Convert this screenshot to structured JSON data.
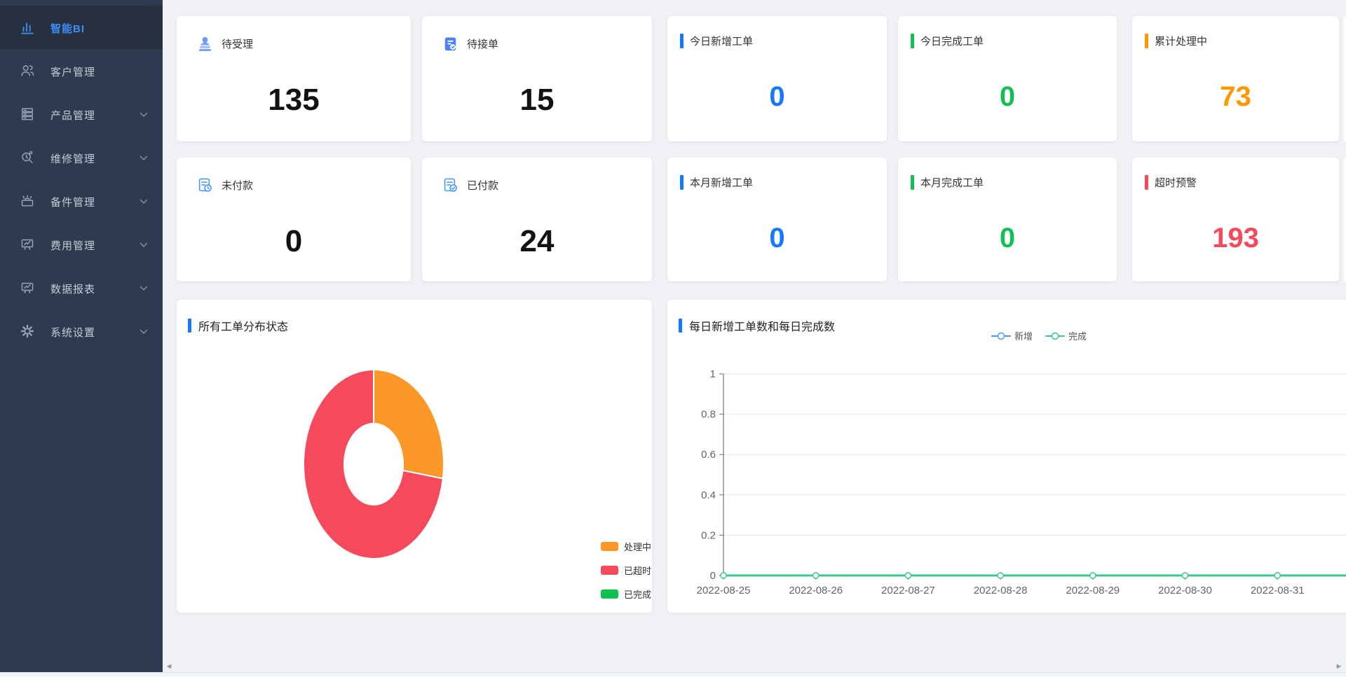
{
  "sidebar": {
    "bg": "#2E3A4E",
    "active_bg": "#26303F",
    "active_color": "#3D8EF7",
    "items": [
      {
        "label": "智能BI",
        "icon": "bar-chart-icon",
        "active": true,
        "chevron": false
      },
      {
        "label": "客户管理",
        "icon": "users-icon",
        "active": false,
        "chevron": false
      },
      {
        "label": "产品管理",
        "icon": "server-stack-icon",
        "active": false,
        "chevron": true
      },
      {
        "label": "维修管理",
        "icon": "magnifier-tool-icon",
        "active": false,
        "chevron": true
      },
      {
        "label": "备件管理",
        "icon": "toolbox-icon",
        "active": false,
        "chevron": true
      },
      {
        "label": "费用管理",
        "icon": "presentation-chart-icon",
        "active": false,
        "chevron": true
      },
      {
        "label": "数据报表",
        "icon": "presentation-chart-icon",
        "active": false,
        "chevron": true
      },
      {
        "label": "系统设置",
        "icon": "gear-icon",
        "active": false,
        "chevron": true
      }
    ]
  },
  "cards": {
    "icon_cards": [
      {
        "row": 1,
        "col": 1,
        "label": "待受理",
        "value": "135",
        "icon": "stamp-icon"
      },
      {
        "row": 1,
        "col": 2,
        "label": "待接单",
        "value": "15",
        "icon": "clipboard-check-icon"
      },
      {
        "row": 2,
        "col": 1,
        "label": "未付款",
        "value": "0",
        "icon": "invoice-clock-icon"
      },
      {
        "row": 2,
        "col": 2,
        "label": "已付款",
        "value": "24",
        "icon": "invoice-check-icon"
      }
    ],
    "bar_cards": [
      {
        "row": 1,
        "col": 1,
        "label": "今日新增工单",
        "value": "0",
        "color": "#1677FF"
      },
      {
        "row": 1,
        "col": 2,
        "label": "今日完成工单",
        "value": "0",
        "color": "#13BF53"
      },
      {
        "row": 1,
        "col": 3,
        "label": "累计处理中",
        "value": "73",
        "color": "#FF9800"
      },
      {
        "row": 2,
        "col": 1,
        "label": "本月新增工单",
        "value": "0",
        "color": "#1677FF"
      },
      {
        "row": 2,
        "col": 2,
        "label": "本月完成工单",
        "value": "0",
        "color": "#13BF53"
      },
      {
        "row": 2,
        "col": 3,
        "label": "超时预警",
        "value": "193",
        "color": "#F5495C"
      }
    ]
  },
  "chart_data": [
    {
      "type": "pie",
      "donut": true,
      "title": "所有工单分布状态",
      "labels": [
        "处理中",
        "已超时",
        "已完成"
      ],
      "values": [
        73,
        193,
        0
      ],
      "colors": [
        "#FB9827",
        "#F5495C",
        "#10C050"
      ],
      "legend_position": "bottom-right"
    },
    {
      "type": "line",
      "title": "每日新增工单数和每日完成数",
      "x": [
        "2022-08-25",
        "2022-08-26",
        "2022-08-27",
        "2022-08-28",
        "2022-08-29",
        "2022-08-30",
        "2022-08-31"
      ],
      "series": [
        {
          "name": "新增",
          "color": "#4D9BF7",
          "values": [
            0,
            0,
            0,
            0,
            0,
            0,
            0
          ]
        },
        {
          "name": "完成",
          "color": "#3EC98C",
          "values": [
            0,
            0,
            0,
            0,
            0,
            0,
            0
          ]
        }
      ],
      "ylim": [
        0,
        1
      ],
      "yticks": [
        0,
        0.2,
        0.4,
        0.6,
        0.8,
        1
      ],
      "grid": true,
      "legend_position": "top-center"
    }
  ],
  "scrollbar": {
    "left_arrow": "◄",
    "right_arrow": "►"
  }
}
